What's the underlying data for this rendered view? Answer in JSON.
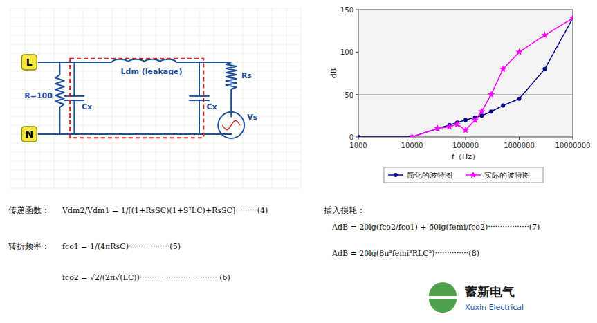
{
  "chart_data": {
    "type": "line",
    "log": "x",
    "xlabel": "f（Hz）",
    "ylabel": "dB",
    "xlim": [
      1000,
      10000000
    ],
    "ylim": [
      0,
      150
    ],
    "xticks": [
      1000,
      10000,
      100000,
      1000000,
      10000000
    ],
    "yticks": [
      0,
      50,
      100,
      150
    ],
    "grid": false,
    "legend": "bottom",
    "hline": 50,
    "series": [
      {
        "name": "简化的波特图",
        "color": "#00008B",
        "marker": "circle",
        "x": [
          1000,
          10000,
          30000,
          50000,
          70000,
          100000,
          150000,
          200000,
          300000,
          500000,
          1000000,
          3000000,
          10000000
        ],
        "values": [
          0,
          0,
          10,
          14,
          17,
          20,
          23,
          25,
          30,
          37,
          45,
          80,
          140
        ]
      },
      {
        "name": "实际的波特图",
        "color": "#FF00FF",
        "marker": "star",
        "x": [
          10000,
          30000,
          50000,
          70000,
          100000,
          150000,
          200000,
          300000,
          500000,
          1000000,
          3000000,
          10000000
        ],
        "values": [
          0,
          10,
          12,
          15,
          8,
          20,
          30,
          50,
          80,
          100,
          120,
          140
        ]
      }
    ],
    "annotations": [
      "L",
      "N",
      "R=100",
      "Ldm (leakage)",
      "Rs",
      "Cx",
      "Vs",
      "传递函数：",
      "Vdm2/Vdm1 = 1/[(1+RsSC)(1+S²LC)+RsSC]·········(4)",
      "转折频率：",
      "fco1 = 1/(4πRsC)·················(5)",
      "fco2 = √2/(2π√(LC))··········  ··········  ·········· (6)",
      "插入损耗：",
      "AdB = 20lg(fco2/fco1) + 60lg(femi/fco2)·················(7)",
      "AdB = 20lg(8π³femi³RLC²)··············(8)",
      "蓄新电气",
      "Xuxin Electrical"
    ]
  }
}
